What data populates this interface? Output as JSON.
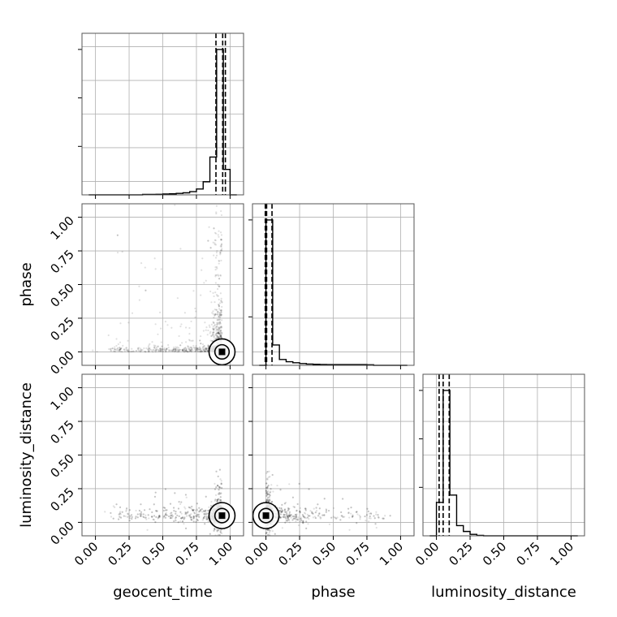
{
  "chart_data": {
    "type": "corner",
    "parameters": [
      "geocent_time",
      "phase",
      "luminosity_distance"
    ],
    "axis_range": [
      -0.1,
      1.1
    ],
    "ticks": [
      0.0,
      0.25,
      0.5,
      0.75,
      1.0
    ],
    "tick_labels": [
      "0.00",
      "0.25",
      "0.50",
      "0.75",
      "1.00"
    ],
    "grid": true,
    "colors": {
      "line": "#000000",
      "grid": "#b0b0b0",
      "sample": "#000000"
    },
    "marginals": [
      {
        "parameter": "geocent_time",
        "bin_edges": [
          -0.05,
          0.0,
          0.05,
          0.1,
          0.15,
          0.2,
          0.25,
          0.3,
          0.35,
          0.4,
          0.45,
          0.5,
          0.55,
          0.6,
          0.65,
          0.7,
          0.75,
          0.8,
          0.85,
          0.9,
          0.95,
          1.0,
          1.05
        ],
        "counts": [
          0,
          0,
          0,
          0,
          0,
          0,
          0,
          0,
          0.003,
          0.003,
          0.004,
          0.006,
          0.007,
          0.01,
          0.014,
          0.022,
          0.04,
          0.09,
          0.26,
          1.0,
          0.175,
          0
        ],
        "quantiles": [
          0.895,
          0.945,
          0.965
        ]
      },
      {
        "parameter": "phase",
        "bin_edges": [
          -0.05,
          0.0,
          0.05,
          0.1,
          0.15,
          0.2,
          0.25,
          0.3,
          0.35,
          0.4,
          0.45,
          0.5,
          0.55,
          0.6,
          0.65,
          0.7,
          0.75,
          0.8,
          0.85,
          0.9,
          0.95,
          1.0,
          1.05
        ],
        "counts": [
          0.0,
          1.0,
          0.14,
          0.04,
          0.025,
          0.018,
          0.012,
          0.009,
          0.007,
          0.006,
          0.005,
          0.005,
          0.005,
          0.005,
          0.005,
          0.005,
          0.004,
          0.0,
          0.0,
          0.0,
          0.0,
          0.0
        ],
        "quantiles": [
          -0.005,
          0.005,
          0.045
        ]
      },
      {
        "parameter": "luminosity_distance",
        "bin_edges": [
          -0.05,
          0.0,
          0.05,
          0.1,
          0.15,
          0.2,
          0.25,
          0.3,
          0.35,
          0.4,
          0.45,
          0.5,
          0.55,
          0.6,
          0.65,
          0.7,
          0.75,
          0.8,
          0.85,
          0.9,
          0.95,
          1.0,
          1.05
        ],
        "counts": [
          0.0,
          0.23,
          1.0,
          0.28,
          0.07,
          0.03,
          0.01,
          0.003,
          0.0,
          0.0,
          0.0,
          0.0,
          0.0,
          0.0,
          0.0,
          0.0,
          0.0,
          0.0,
          0.0,
          0.0,
          0.0,
          0.0
        ],
        "quantiles": [
          0.02,
          0.05,
          0.095
        ]
      }
    ],
    "joint": [
      {
        "x": "geocent_time",
        "y": "phase",
        "peak": [
          0.94,
          0.0
        ],
        "spread_x": 0.035,
        "spread_y": 0.02,
        "n_samples": 2200
      },
      {
        "x": "geocent_time",
        "y": "luminosity_distance",
        "peak": [
          0.94,
          0.05
        ],
        "spread_x": 0.035,
        "spread_y": 0.035,
        "n_samples": 2200
      },
      {
        "x": "phase",
        "y": "luminosity_distance",
        "peak": [
          0.0,
          0.05
        ],
        "spread_x": 0.02,
        "spread_y": 0.035,
        "n_samples": 2200
      }
    ]
  }
}
